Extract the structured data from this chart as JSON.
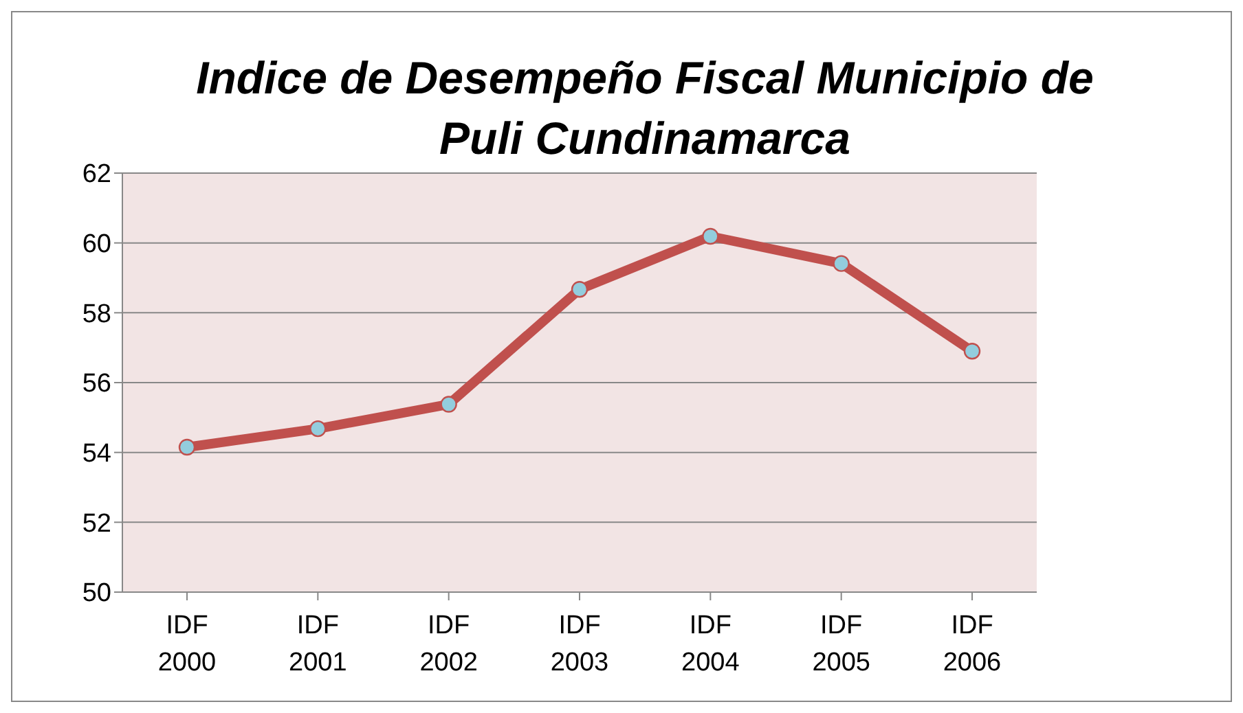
{
  "chart_data": {
    "type": "line",
    "title": "Indice de Desempeño Fiscal Municipio de Puli Cundinamarca",
    "categories": [
      "IDF 2000",
      "IDF 2001",
      "IDF 2002",
      "IDF 2003",
      "IDF 2004",
      "IDF 2005",
      "IDF 2006"
    ],
    "series": [
      {
        "color": "#c0504d",
        "values": [
          54.15,
          54.68,
          55.38,
          58.67,
          60.19,
          59.41,
          56.9
        ]
      }
    ],
    "ylim": [
      50,
      62
    ],
    "yticks": [
      50,
      52,
      54,
      56,
      58,
      60,
      62
    ],
    "grid": "y",
    "legend": false,
    "marker": "circle",
    "line_style": "solid"
  }
}
